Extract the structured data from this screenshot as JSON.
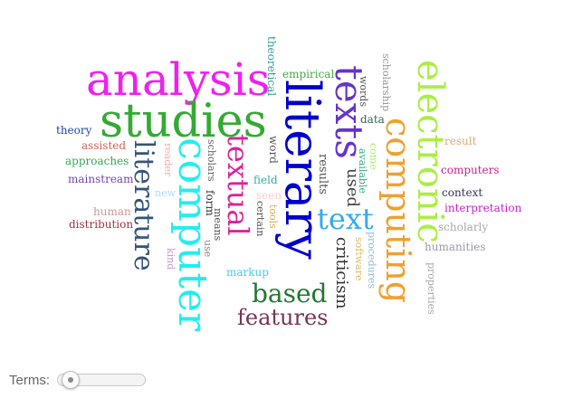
{
  "terms": {
    "label": "Terms:",
    "slider_value_fraction": 0.05
  },
  "word_cloud": {
    "words": [
      {
        "text": "analysis",
        "color": "#ee22ee"
      },
      {
        "text": "studies",
        "color": "#33aa33"
      },
      {
        "text": "literary",
        "color": "#0000cc"
      },
      {
        "text": "texts",
        "color": "#6633cc"
      },
      {
        "text": "electronic",
        "color": "#aaee44"
      },
      {
        "text": "computing",
        "color": "#f0a030"
      },
      {
        "text": "computer",
        "color": "#22eeee"
      },
      {
        "text": "literature",
        "color": "#335577"
      },
      {
        "text": "textual",
        "color": "#dd2299"
      },
      {
        "text": "text",
        "color": "#33aaee"
      },
      {
        "text": "based",
        "color": "#227733"
      },
      {
        "text": "features",
        "color": "#773355"
      },
      {
        "text": "criticism",
        "color": "#333333"
      },
      {
        "text": "used",
        "color": "#444444"
      },
      {
        "text": "results",
        "color": "#555555"
      },
      {
        "text": "theoretical",
        "color": "#339999"
      },
      {
        "text": "empirical",
        "color": "#44aa44"
      },
      {
        "text": "words",
        "color": "#555555"
      },
      {
        "text": "scholarship",
        "color": "#999999"
      },
      {
        "text": "data",
        "color": "#336655"
      },
      {
        "text": "theory",
        "color": "#2244aa"
      },
      {
        "text": "assisted",
        "color": "#cc6655"
      },
      {
        "text": "approaches",
        "color": "#33aa55"
      },
      {
        "text": "mainstream",
        "color": "#7744aa"
      },
      {
        "text": "reader",
        "color": "#ffaaaa"
      },
      {
        "text": "new",
        "color": "#aaddff"
      },
      {
        "text": "human",
        "color": "#cc9999"
      },
      {
        "text": "distribution",
        "color": "#993344"
      },
      {
        "text": "scholars",
        "color": "#666666"
      },
      {
        "text": "form",
        "color": "#333333"
      },
      {
        "text": "means",
        "color": "#555555"
      },
      {
        "text": "use",
        "color": "#888888"
      },
      {
        "text": "kind",
        "color": "#cc99cc"
      },
      {
        "text": "word",
        "color": "#555555"
      },
      {
        "text": "field",
        "color": "#33aaaa"
      },
      {
        "text": "seen",
        "color": "#ffcccc"
      },
      {
        "text": "tools",
        "color": "#ddaa55"
      },
      {
        "text": "certain",
        "color": "#555555"
      },
      {
        "text": "markup",
        "color": "#44ccee"
      },
      {
        "text": "come",
        "color": "#aaee77"
      },
      {
        "text": "available",
        "color": "#33aa88"
      },
      {
        "text": "software",
        "color": "#ddbb66"
      },
      {
        "text": "procedures",
        "color": "#99bbdd"
      },
      {
        "text": "result",
        "color": "#ddaa77"
      },
      {
        "text": "computers",
        "color": "#cc2288"
      },
      {
        "text": "context",
        "color": "#333366"
      },
      {
        "text": "interpretation",
        "color": "#cc22cc"
      },
      {
        "text": "scholarly",
        "color": "#aaaaaa"
      },
      {
        "text": "humanities",
        "color": "#9999aa"
      },
      {
        "text": "properties",
        "color": "#aaaaaa"
      }
    ]
  }
}
